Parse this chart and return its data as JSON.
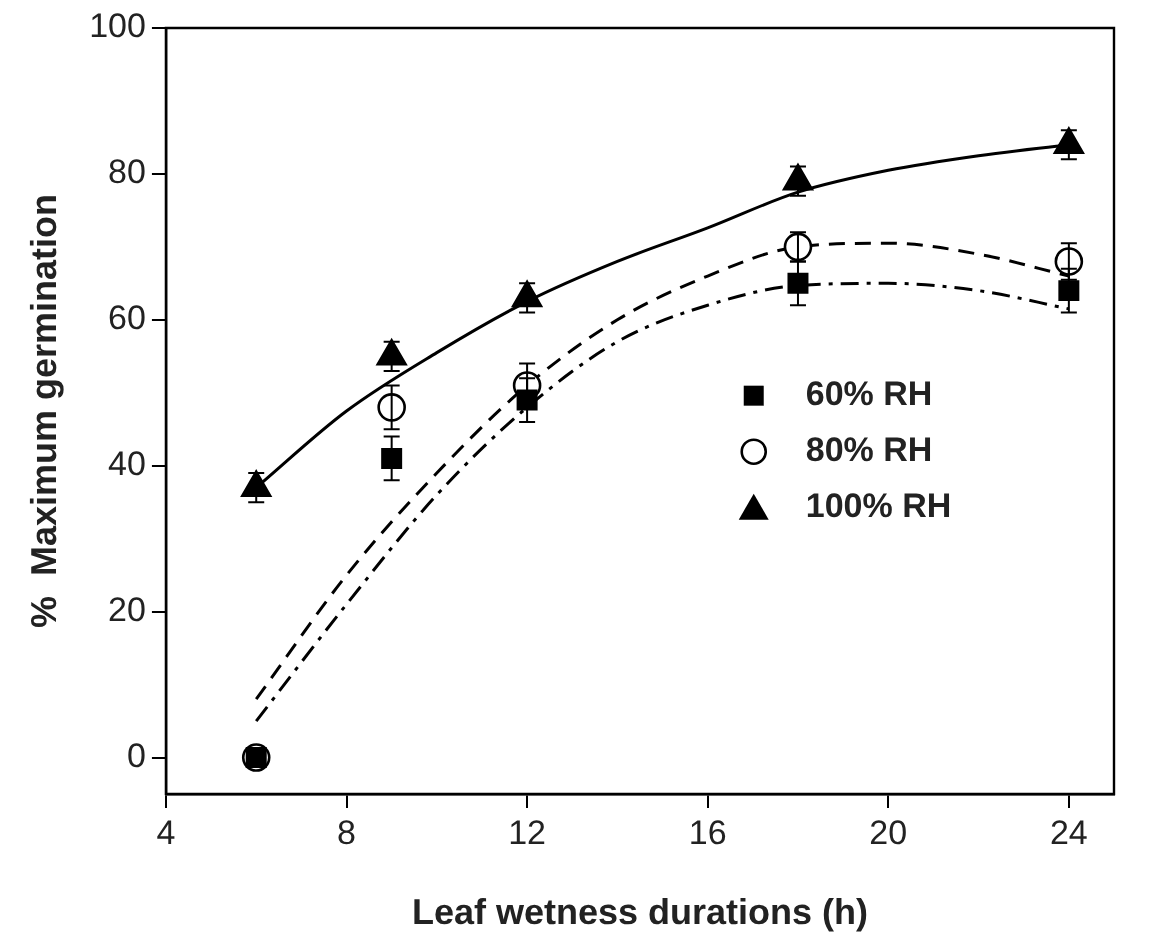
{
  "chart_data": {
    "type": "scatter",
    "xlabel": "Leaf wetness durations (h)",
    "ylabel": "%  Maximum germination",
    "xlim": [
      4,
      25
    ],
    "xticks": [
      4,
      8,
      12,
      16,
      20,
      24
    ],
    "ylim": [
      -5,
      100
    ],
    "yticks": [
      0,
      20,
      40,
      60,
      80,
      100
    ],
    "grid": false,
    "legend": "right",
    "series": [
      {
        "name": "60% RH",
        "type": "scatter",
        "marker": "square",
        "color": "#000000",
        "x": [
          6,
          9,
          12,
          18,
          24
        ],
        "values": [
          0,
          41,
          49,
          65,
          64
        ],
        "errors": [
          null,
          3,
          3,
          3,
          3
        ]
      },
      {
        "name": "80% RH",
        "type": "scatter",
        "marker": "circle",
        "color": "#000000",
        "x": [
          6,
          9,
          12,
          18,
          24
        ],
        "values": [
          0,
          48,
          51,
          70,
          68
        ],
        "errors": [
          null,
          3,
          3,
          2,
          2.5
        ]
      },
      {
        "name": "100% RH",
        "type": "scatter",
        "marker": "triangle",
        "color": "#000000",
        "x": [
          6,
          9,
          12,
          18,
          24
        ],
        "values": [
          37,
          55,
          63,
          79,
          84
        ],
        "errors": [
          2,
          2,
          2,
          2,
          2
        ]
      },
      {
        "type": "line",
        "line_style": "dotted",
        "marker": "none",
        "color": "#000000",
        "x": [
          6,
          8,
          10,
          12,
          14,
          16,
          18,
          20,
          22,
          24
        ],
        "values": [
          5,
          21,
          36,
          48,
          57,
          62,
          64.7,
          65,
          64,
          61.5
        ]
      },
      {
        "type": "line",
        "line_style": "dashed",
        "marker": "none",
        "color": "#000000",
        "x": [
          6,
          8,
          10,
          12,
          14,
          16,
          18,
          20,
          22,
          24
        ],
        "values": [
          8,
          25,
          39,
          51,
          60,
          66,
          70,
          70.5,
          69,
          66
        ]
      },
      {
        "type": "line",
        "line_style": "solid",
        "marker": "none",
        "color": "#000000",
        "x": [
          6,
          8,
          10,
          12,
          14,
          16,
          18,
          20,
          22,
          24
        ],
        "values": [
          37,
          47.5,
          55.5,
          62.5,
          68,
          72.6,
          77.5,
          80.5,
          82.5,
          84
        ]
      }
    ]
  }
}
